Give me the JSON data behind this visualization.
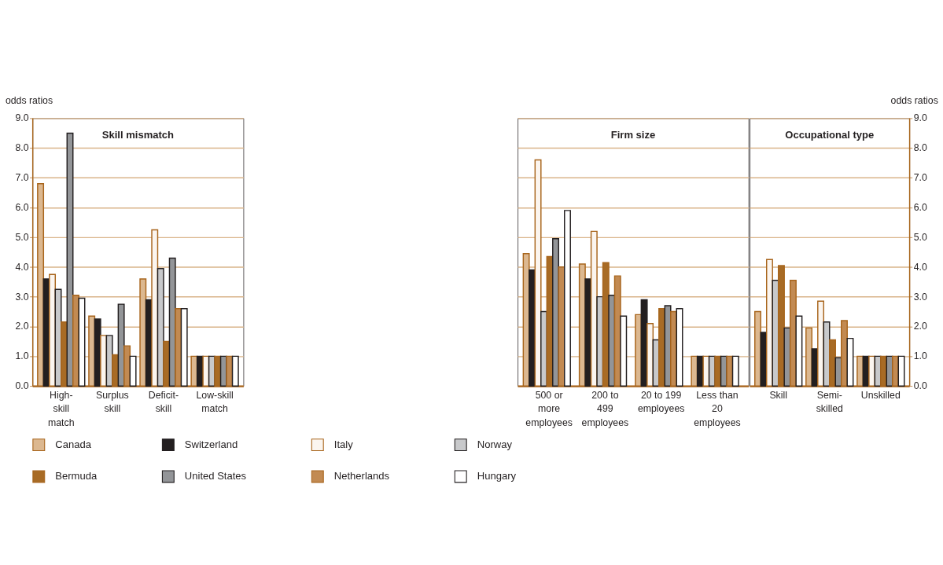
{
  "chart_data": [
    {
      "type": "bar",
      "title": "Skill mismatch",
      "ylabel": "odds ratios",
      "categories": [
        "High-skill match",
        "Surplus skill",
        "Deficit-skill",
        "Low-skill match"
      ],
      "ylim": [
        0,
        9
      ],
      "yticks": [
        {
          "value": 0,
          "label": "0.0"
        },
        {
          "value": 1,
          "label": "1.0"
        },
        {
          "value": 2,
          "label": "2.0"
        },
        {
          "value": 3,
          "label": "3.0"
        },
        {
          "value": 4,
          "label": "4.0"
        },
        {
          "value": 5,
          "label": "5.0"
        },
        {
          "value": 6,
          "label": "6.0"
        },
        {
          "value": 7,
          "label": "7.0"
        },
        {
          "value": 8,
          "label": "8.0"
        },
        {
          "value": 9,
          "label": "9.0"
        }
      ],
      "grid": "y",
      "legend": "bottom",
      "series": [
        {
          "name": "Canada",
          "color": "#dcb890",
          "values": [
            6.8,
            2.35,
            3.6,
            1.0
          ]
        },
        {
          "name": "Switzerland",
          "color": "#231f20",
          "values": [
            3.6,
            2.25,
            2.9,
            1.0
          ]
        },
        {
          "name": "Italy",
          "color": "#fbf5ef",
          "values": [
            3.75,
            1.7,
            5.25,
            1.0
          ]
        },
        {
          "name": "Norway",
          "color": "#c8c9cb",
          "values": [
            3.25,
            1.7,
            3.95,
            1.0
          ]
        },
        {
          "name": "Bermuda",
          "color": "#a86b25",
          "values": [
            2.15,
            1.05,
            1.5,
            1.0
          ]
        },
        {
          "name": "United States",
          "color": "#939598",
          "values": [
            8.5,
            2.75,
            4.3,
            1.0
          ]
        },
        {
          "name": "Netherlands",
          "color": "#c28a52",
          "values": [
            3.05,
            1.35,
            2.6,
            1.0
          ]
        },
        {
          "name": "Hungary",
          "color": "#ffffff",
          "values": [
            2.95,
            1.0,
            2.6,
            1.0
          ]
        }
      ]
    },
    {
      "type": "bar",
      "title": "Firm size",
      "categories": [
        "500 or more employees",
        "200 to 499 employees",
        "20 to 199 employees",
        "Less than 20 employees"
      ],
      "ylim": [
        0,
        9
      ],
      "yticks": [
        0,
        1,
        2,
        3,
        4,
        5,
        6,
        7,
        8,
        9
      ],
      "tick_labels": "x",
      "grid": "y",
      "series": [
        {
          "name": "Canada",
          "color": "#dcb890",
          "values": [
            4.45,
            4.1,
            2.4,
            1.0
          ]
        },
        {
          "name": "Switzerland",
          "color": "#231f20",
          "values": [
            3.9,
            3.6,
            2.9,
            1.0
          ]
        },
        {
          "name": "Italy",
          "color": "#fbf5ef",
          "values": [
            7.6,
            5.2,
            2.1,
            1.0
          ]
        },
        {
          "name": "Norway",
          "color": "#c8c9cb",
          "values": [
            2.5,
            3.0,
            1.55,
            1.0
          ]
        },
        {
          "name": "Bermuda",
          "color": "#a86b25",
          "values": [
            4.35,
            4.15,
            2.6,
            1.0
          ]
        },
        {
          "name": "United States",
          "color": "#939598",
          "values": [
            4.95,
            3.05,
            2.7,
            1.0
          ]
        },
        {
          "name": "Netherlands",
          "color": "#c28a52",
          "values": [
            4.0,
            3.7,
            2.5,
            1.0
          ]
        },
        {
          "name": "Hungary",
          "color": "#ffffff",
          "values": [
            5.9,
            2.35,
            2.6,
            1.0
          ]
        }
      ]
    },
    {
      "type": "bar",
      "title": "Occupational type",
      "y2label": "odds ratios",
      "categories": [
        "Skill",
        "Semi-skilled",
        "Unskilled"
      ],
      "y2lim": [
        0,
        9
      ],
      "y2ticks": [
        {
          "value": 0,
          "label": "0.0"
        },
        {
          "value": 1,
          "label": "1.0"
        },
        {
          "value": 2,
          "label": "2.0"
        },
        {
          "value": 3,
          "label": "3.0"
        },
        {
          "value": 4,
          "label": "4.0"
        },
        {
          "value": 5,
          "label": "5.0"
        },
        {
          "value": 6,
          "label": "6.0"
        },
        {
          "value": 7,
          "label": "7.0"
        },
        {
          "value": 8,
          "label": "8.0"
        },
        {
          "value": 9,
          "label": "9.0"
        }
      ],
      "grid": "y",
      "series": [
        {
          "name": "Canada",
          "color": "#dcb890",
          "axis": "y2",
          "values": [
            2.5,
            1.95,
            1.0
          ]
        },
        {
          "name": "Switzerland",
          "color": "#231f20",
          "axis": "y2",
          "values": [
            1.8,
            1.25,
            1.0
          ]
        },
        {
          "name": "Italy",
          "color": "#fbf5ef",
          "axis": "y2",
          "values": [
            4.25,
            2.85,
            1.0
          ]
        },
        {
          "name": "Norway",
          "color": "#c8c9cb",
          "axis": "y2",
          "values": [
            3.55,
            2.15,
            1.0
          ]
        },
        {
          "name": "Bermuda",
          "color": "#a86b25",
          "axis": "y2",
          "values": [
            4.05,
            1.55,
            1.0
          ]
        },
        {
          "name": "United States",
          "color": "#939598",
          "axis": "y2",
          "values": [
            1.95,
            0.95,
            1.0
          ]
        },
        {
          "name": "Netherlands",
          "color": "#c28a52",
          "axis": "y2",
          "values": [
            3.55,
            2.2,
            1.0
          ]
        },
        {
          "name": "Hungary",
          "color": "#ffffff",
          "axis": "y2",
          "values": [
            2.35,
            1.6,
            1.0
          ]
        }
      ]
    }
  ]
}
